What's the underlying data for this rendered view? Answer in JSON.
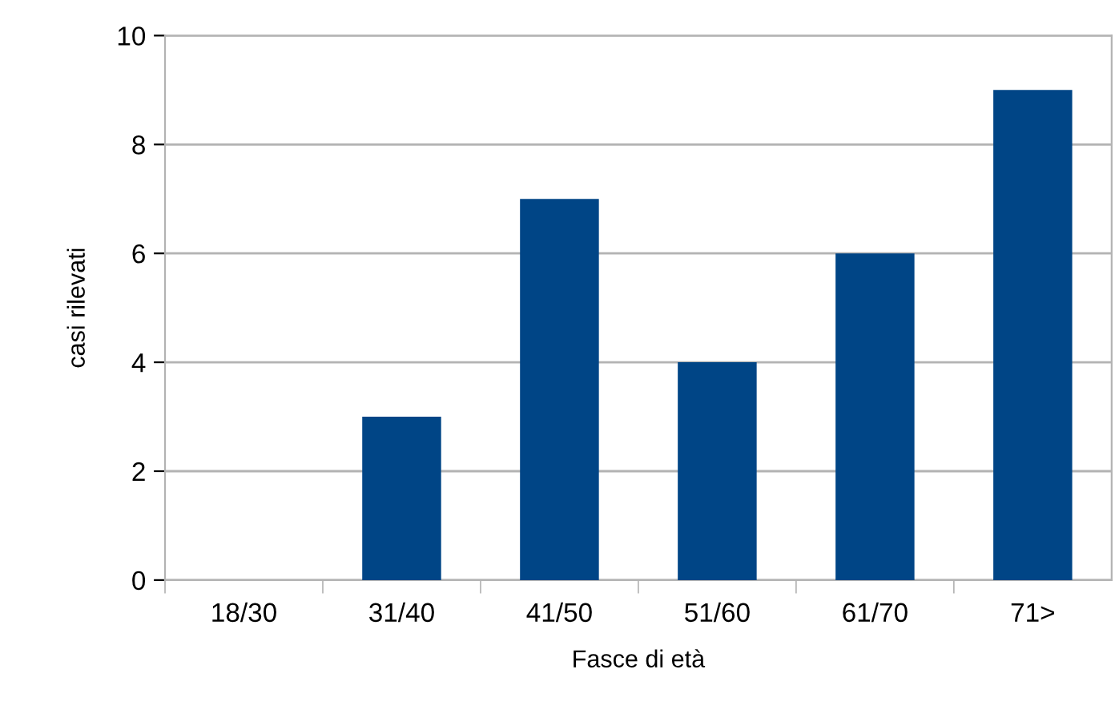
{
  "chart_data": {
    "type": "bar",
    "xlabel": "Fasce di età",
    "ylabel": "casi rilevati",
    "categories": [
      "18/30",
      "31/40",
      "41/50",
      "51/60",
      "61/70",
      "71>"
    ],
    "values": [
      0,
      3,
      7,
      4,
      6,
      9
    ],
    "color": "#004586",
    "ylim": [
      0,
      10
    ],
    "yticks": [
      0,
      2,
      4,
      6,
      8,
      10
    ],
    "grid": "y",
    "legend": false
  }
}
